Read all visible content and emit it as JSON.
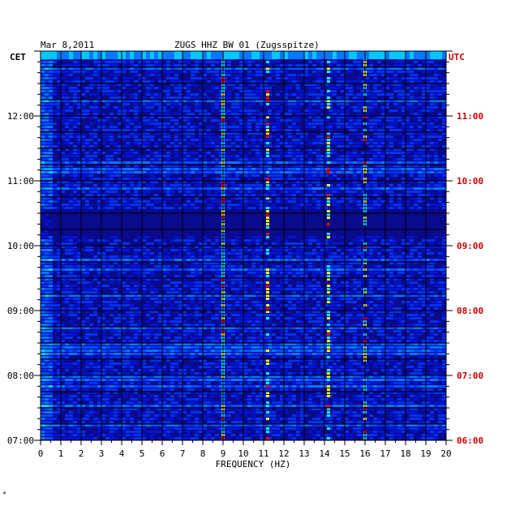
{
  "header": {
    "date": "Mar 8,2011",
    "station": "ZUGS HHZ BW 01 (Zugsspitze)",
    "left_zone": "CET",
    "right_zone": "UTC"
  },
  "corner_mark": "*",
  "chart_data": {
    "type": "heatmap",
    "title": "ZUGS HHZ BW 01 (Zugsspitze)",
    "xlabel": "FREQUENCY (HZ)",
    "xlim": [
      0,
      20
    ],
    "x_ticks": [
      "0",
      "1",
      "2",
      "3",
      "4",
      "5",
      "6",
      "7",
      "8",
      "9",
      "10",
      "11",
      "12",
      "13",
      "14",
      "15",
      "16",
      "17",
      "18",
      "19",
      "20"
    ],
    "y_left_label": "CET",
    "y_right_label": "UTC",
    "y_left_ticks": [
      "12:00",
      "11:00",
      "10:00",
      "09:00",
      "08:00",
      "07:00"
    ],
    "y_right_ticks": [
      "11:00",
      "10:00",
      "09:00",
      "08:00",
      "07:00",
      "06:00"
    ],
    "time_range_cet_hours": [
      7.0,
      13.0
    ],
    "grid": true,
    "colors": {
      "background": "#0a0a8c",
      "low": "#0000a0",
      "mid": "#0050ff",
      "high": "#00ffff",
      "peak": "#ff0000",
      "gridline": "#000000",
      "utc_text": "#cc0000"
    },
    "persistent_lines_hz": [
      9.0,
      11.2,
      14.2,
      16.0
    ],
    "quiet_band_cet_hours": [
      10.1,
      10.6
    ]
  }
}
